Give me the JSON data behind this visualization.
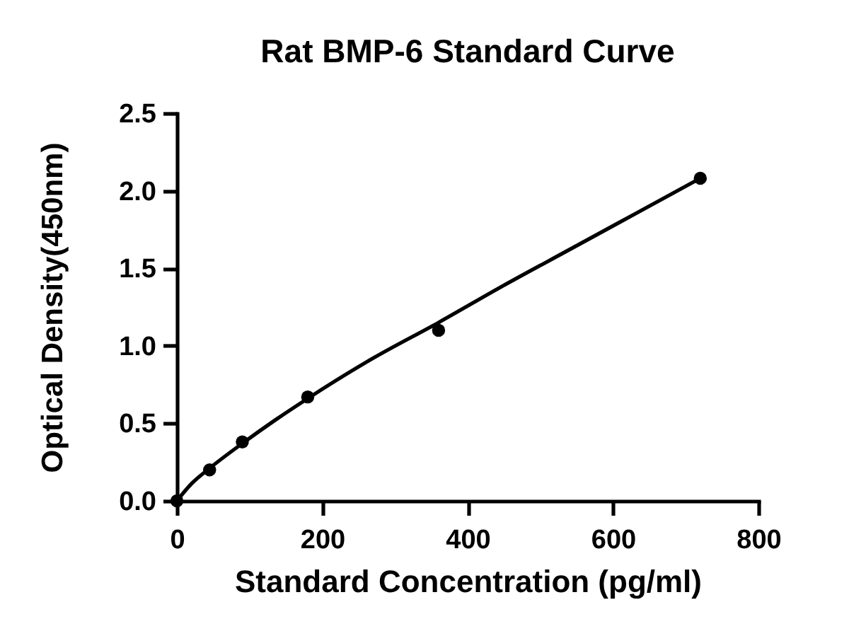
{
  "chart_data": {
    "type": "scatter",
    "title": "Rat BMP-6 Standard Curve",
    "xlabel": "Standard Concentration (pg/ml)",
    "ylabel": "Optical Density(450nm)",
    "x": [
      0,
      45,
      90,
      180,
      360,
      720
    ],
    "series": [
      {
        "color": "#000000",
        "values": [
          0,
          0.2,
          0.38,
          0.67,
          1.1,
          2.08
        ]
      },
      {
        "type": "line",
        "color": "#000000",
        "marker": "none",
        "x": [
          0,
          20,
          45,
          90,
          135,
          180,
          270,
          360,
          450,
          540,
          630,
          720
        ],
        "values": [
          0,
          0.11,
          0.21,
          0.37,
          0.52,
          0.66,
          0.92,
          1.15,
          1.39,
          1.62,
          1.85,
          2.08
        ]
      }
    ],
    "xlim": [
      0,
      800
    ],
    "ylim": [
      0,
      2.5
    ],
    "xticks": [
      0,
      200,
      400,
      600,
      800
    ],
    "yticks": [
      {
        "value": 0,
        "label": "0.0"
      },
      0.5,
      {
        "value": 1,
        "label": "1.0"
      },
      1.5,
      {
        "value": 2,
        "label": "2.0"
      },
      2.5
    ],
    "marker": "circle"
  }
}
